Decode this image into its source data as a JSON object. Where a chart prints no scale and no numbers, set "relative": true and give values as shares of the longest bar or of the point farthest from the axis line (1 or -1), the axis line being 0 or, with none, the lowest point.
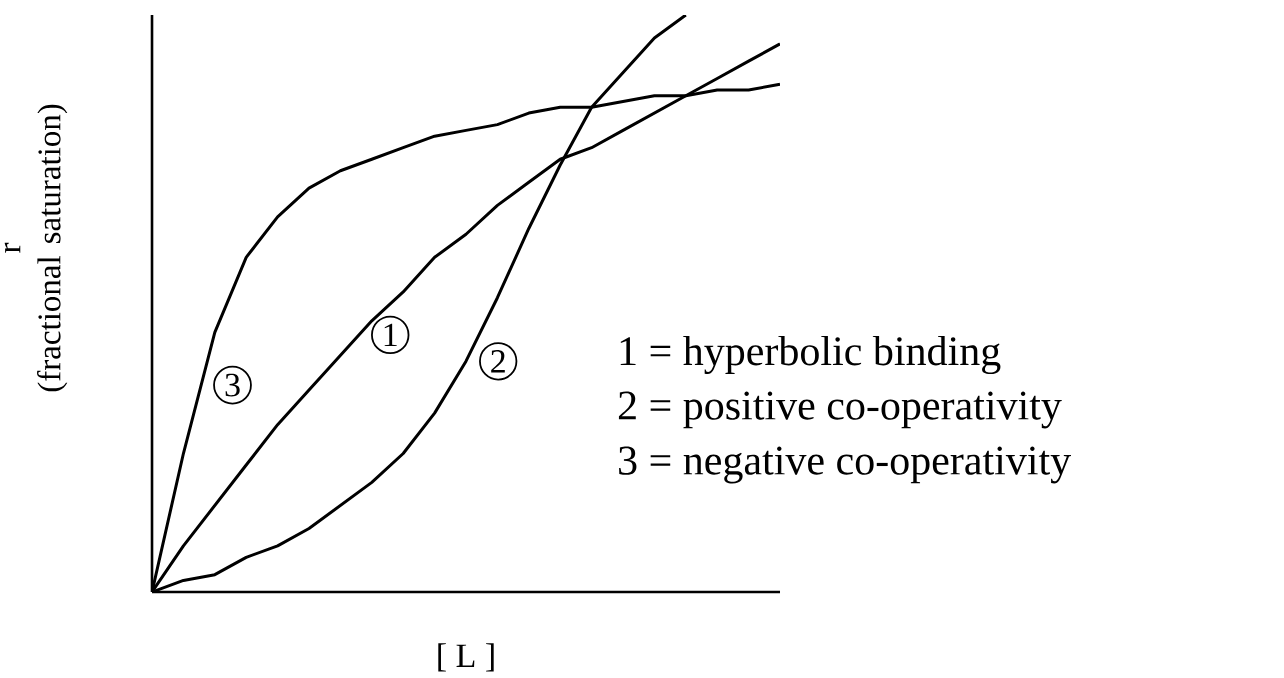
{
  "chart_data": {
    "type": "line",
    "relative": true,
    "xlabel": "[ L ]",
    "ylabel": "r (fractional saturation)",
    "categories": [
      null,
      null,
      null,
      null,
      null,
      null,
      null,
      null,
      null,
      null,
      null,
      null,
      null,
      null,
      null,
      null,
      null,
      null,
      null,
      null,
      null
    ],
    "series": [
      {
        "name": "3",
        "color": "#000000",
        "values": [
          0,
          0.24,
          0.45,
          0.58,
          0.65,
          0.7,
          0.73,
          0.75,
          0.77,
          0.79,
          0.8,
          0.81,
          0.83,
          0.84,
          0.84,
          0.85,
          0.86,
          0.86,
          0.87,
          0.87,
          0.88
        ]
      },
      {
        "name": "1",
        "color": "#000000",
        "values": [
          0,
          0.08,
          0.15,
          0.22,
          0.29,
          0.35,
          0.41,
          0.47,
          0.52,
          0.58,
          0.62,
          0.67,
          0.71,
          0.75,
          0.77,
          0.8,
          0.83,
          0.86,
          0.89,
          0.92,
          0.95
        ]
      },
      {
        "name": "2",
        "color": "#000000",
        "values": [
          0,
          0.02,
          0.03,
          0.06,
          0.08,
          0.11,
          0.15,
          0.19,
          0.24,
          0.31,
          0.4,
          0.51,
          0.63,
          0.74,
          0.84,
          0.9,
          0.96,
          1.0,
          null,
          null,
          null
        ]
      }
    ],
    "annotations": [
      "1 = hyperbolic binding",
      "2 = positive co-operativity",
      "3 = negative co-operativity"
    ],
    "legend": "center",
    "marker": "none",
    "line_style": "solid"
  }
}
